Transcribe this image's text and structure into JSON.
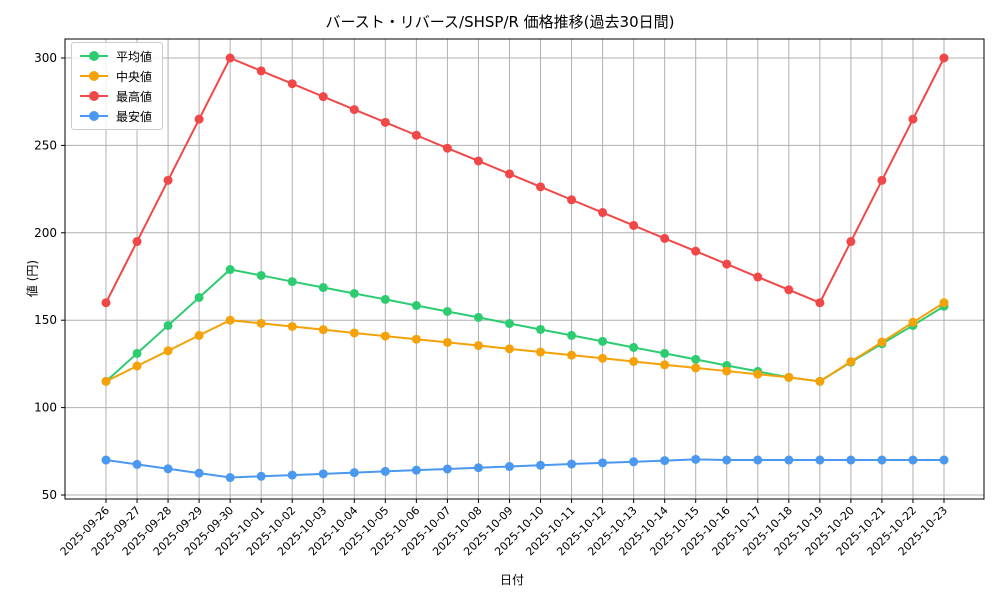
{
  "chart_data": {
    "type": "line",
    "title": "バースト・リバース/SHSP/R 価格推移(過去30日間)",
    "xlabel": "日付",
    "ylabel": "値 (円)",
    "ylim": [
      47,
      312
    ],
    "yticks": [
      50,
      100,
      150,
      200,
      250,
      300
    ],
    "grid": true,
    "legend_position": "upper left",
    "x": [
      "2025-09-26",
      "2025-09-27",
      "2025-09-28",
      "2025-09-29",
      "2025-09-30",
      "2025-10-01",
      "2025-10-02",
      "2025-10-03",
      "2025-10-04",
      "2025-10-05",
      "2025-10-06",
      "2025-10-07",
      "2025-10-08",
      "2025-10-09",
      "2025-10-10",
      "2025-10-11",
      "2025-10-12",
      "2025-10-13",
      "2025-10-14",
      "2025-10-15",
      "2025-10-16",
      "2025-10-17",
      "2025-10-18",
      "2025-10-19",
      "2025-10-20",
      "2025-10-21",
      "2025-10-22",
      "2025-10-23"
    ],
    "series": [
      {
        "name": "平均値",
        "color": "#2ecc71",
        "values": [
          115,
          131,
          147,
          163,
          179,
          175.6,
          172.1,
          168.7,
          165.3,
          161.9,
          158.4,
          155,
          151.6,
          148.1,
          144.7,
          141.3,
          137.9,
          134.4,
          131,
          127.6,
          124.1,
          120.7,
          117.3,
          115,
          126,
          136.5,
          147,
          158
        ]
      },
      {
        "name": "中央値",
        "color": "#f5a20a",
        "values": [
          115,
          123.8,
          132.5,
          141.3,
          150,
          148.2,
          146.4,
          144.6,
          142.7,
          140.9,
          139.1,
          137.3,
          135.5,
          133.6,
          131.8,
          130,
          128.2,
          126.4,
          124.5,
          122.7,
          120.9,
          119.1,
          117.3,
          115,
          126.3,
          137.5,
          148.8,
          160
        ]
      },
      {
        "name": "最高値",
        "color": "#f04848",
        "values": [
          160,
          195,
          230,
          265,
          300,
          292.6,
          285.3,
          277.9,
          270.5,
          263.2,
          255.8,
          248.4,
          241.1,
          233.7,
          226.3,
          218.9,
          211.6,
          204.2,
          196.8,
          189.5,
          182.1,
          174.7,
          167.4,
          160,
          195,
          230,
          265,
          300
        ]
      },
      {
        "name": "最安値",
        "color": "#4a98f0",
        "values": [
          70,
          67.5,
          65,
          62.5,
          60,
          60.7,
          61.4,
          62.1,
          62.8,
          63.5,
          64.2,
          64.9,
          65.6,
          66.3,
          67,
          67.7,
          68.4,
          69,
          69.7,
          70.4,
          70,
          70,
          70,
          70,
          70,
          70,
          70,
          70
        ]
      }
    ]
  },
  "legend": {
    "items": [
      {
        "label": "平均値",
        "color": "#2ecc71"
      },
      {
        "label": "中央値",
        "color": "#f5a20a"
      },
      {
        "label": "最高値",
        "color": "#f04848"
      },
      {
        "label": "最安値",
        "color": "#4a98f0"
      }
    ]
  }
}
